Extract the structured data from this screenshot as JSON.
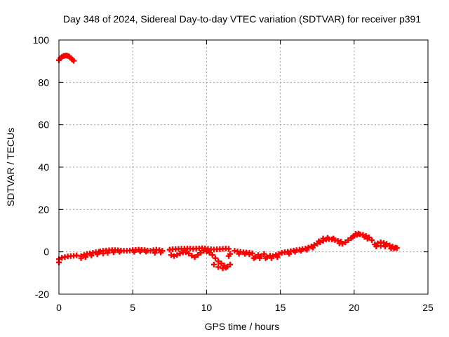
{
  "chart_data": {
    "type": "scatter",
    "title": "Day 348 of 2024, Sidereal Day-to-day VTEC variation (SDTVAR) for receiver p391",
    "xlabel": "GPS time / hours",
    "ylabel": "SDTVAR / TECUs",
    "xlim": [
      0,
      25
    ],
    "ylim": [
      -20,
      100
    ],
    "xticks": [
      0,
      5,
      10,
      15,
      20,
      25
    ],
    "yticks": [
      -20,
      0,
      20,
      40,
      60,
      80,
      100
    ],
    "grid": true,
    "marker": "plus",
    "series": [
      {
        "name": "SDTVAR",
        "color": "#ff0000",
        "points": [
          [
            0.0,
            90.5
          ],
          [
            0.1,
            91.5
          ],
          [
            0.2,
            92.0
          ],
          [
            0.3,
            92.4
          ],
          [
            0.4,
            92.6
          ],
          [
            0.5,
            92.7
          ],
          [
            0.6,
            92.5
          ],
          [
            0.7,
            92.2
          ],
          [
            0.8,
            91.5
          ],
          [
            0.9,
            90.8
          ],
          [
            1.0,
            90.2
          ],
          [
            0.0,
            -3.5
          ],
          [
            0.0,
            -5.0
          ],
          [
            0.2,
            -2.8
          ],
          [
            0.4,
            -2.5
          ],
          [
            0.6,
            -2.2
          ],
          [
            0.8,
            -2.0
          ],
          [
            1.0,
            -1.9
          ],
          [
            1.2,
            -1.7
          ],
          [
            1.5,
            -2.0
          ],
          [
            1.7,
            -1.5
          ],
          [
            1.9,
            -1.0
          ],
          [
            2.1,
            -0.8
          ],
          [
            2.3,
            -0.5
          ],
          [
            2.5,
            -0.2
          ],
          [
            2.7,
            0.0
          ],
          [
            1.5,
            -3.0
          ],
          [
            1.8,
            -2.5
          ],
          [
            2.2,
            -1.8
          ],
          [
            2.6,
            -1.2
          ],
          [
            2.8,
            0.2
          ],
          [
            3.0,
            0.5
          ],
          [
            3.2,
            0.6
          ],
          [
            3.4,
            0.7
          ],
          [
            3.6,
            0.8
          ],
          [
            3.8,
            0.8
          ],
          [
            4.0,
            0.7
          ],
          [
            4.2,
            0.6
          ],
          [
            4.4,
            0.5
          ],
          [
            3.0,
            -0.8
          ],
          [
            3.3,
            -0.5
          ],
          [
            3.7,
            -0.2
          ],
          [
            4.1,
            0.0
          ],
          [
            4.6,
            0.5
          ],
          [
            4.8,
            0.6
          ],
          [
            5.0,
            0.8
          ],
          [
            5.2,
            0.9
          ],
          [
            5.4,
            1.0
          ],
          [
            5.6,
            0.9
          ],
          [
            5.8,
            0.8
          ],
          [
            6.0,
            0.6
          ],
          [
            6.2,
            0.5
          ],
          [
            5.1,
            0.0
          ],
          [
            5.5,
            0.2
          ],
          [
            5.9,
            0.1
          ],
          [
            6.4,
            0.8
          ],
          [
            6.6,
            1.0
          ],
          [
            6.8,
            0.8
          ],
          [
            7.0,
            0.5
          ],
          [
            6.5,
            -0.5
          ],
          [
            6.9,
            -0.3
          ],
          [
            7.5,
            1.0
          ],
          [
            7.7,
            1.2
          ],
          [
            7.9,
            1.3
          ],
          [
            8.1,
            1.4
          ],
          [
            8.3,
            1.5
          ],
          [
            8.5,
            1.5
          ],
          [
            8.7,
            1.6
          ],
          [
            8.9,
            1.5
          ],
          [
            9.1,
            1.4
          ],
          [
            9.3,
            1.5
          ],
          [
            9.5,
            1.6
          ],
          [
            9.7,
            1.7
          ],
          [
            9.9,
            1.6
          ],
          [
            10.1,
            1.4
          ],
          [
            10.3,
            1.2
          ],
          [
            10.5,
            1.1
          ],
          [
            10.7,
            1.2
          ],
          [
            10.9,
            1.3
          ],
          [
            11.1,
            1.4
          ],
          [
            11.3,
            1.5
          ],
          [
            11.5,
            1.4
          ],
          [
            7.6,
            -1.5
          ],
          [
            7.8,
            -2.0
          ],
          [
            8.0,
            -1.5
          ],
          [
            8.2,
            -0.8
          ],
          [
            8.4,
            -0.3
          ],
          [
            8.6,
            -0.2
          ],
          [
            8.8,
            -0.8
          ],
          [
            9.0,
            -1.8
          ],
          [
            9.2,
            -2.5
          ],
          [
            9.4,
            -1.5
          ],
          [
            9.6,
            -0.5
          ],
          [
            9.8,
            0.5
          ],
          [
            10.0,
            0.2
          ],
          [
            10.2,
            -0.5
          ],
          [
            10.4,
            -1.5
          ],
          [
            10.6,
            -3.0
          ],
          [
            10.8,
            -4.5
          ],
          [
            11.0,
            -5.5
          ],
          [
            11.2,
            -6.5
          ],
          [
            11.4,
            -7.0
          ],
          [
            11.6,
            -6.0
          ],
          [
            10.5,
            -6.0
          ],
          [
            10.8,
            -7.2
          ],
          [
            11.1,
            -7.8
          ],
          [
            11.3,
            -7.5
          ],
          [
            11.5,
            -2.0
          ],
          [
            11.6,
            -1.0
          ],
          [
            11.9,
            0.5
          ],
          [
            12.1,
            0.2
          ],
          [
            12.3,
            0.0
          ],
          [
            12.5,
            -0.2
          ],
          [
            12.7,
            -0.3
          ],
          [
            12.9,
            -0.5
          ],
          [
            13.1,
            -0.7
          ],
          [
            12.2,
            -1.0
          ],
          [
            12.6,
            -1.0
          ],
          [
            12.9,
            -1.2
          ],
          [
            13.3,
            -2.5
          ],
          [
            13.5,
            -1.5
          ],
          [
            13.7,
            -2.0
          ],
          [
            13.9,
            -1.0
          ],
          [
            14.1,
            -2.5
          ],
          [
            14.3,
            -1.8
          ],
          [
            14.5,
            -2.0
          ],
          [
            14.7,
            -1.5
          ],
          [
            14.9,
            -1.0
          ],
          [
            13.2,
            -3.0
          ],
          [
            13.6,
            -3.0
          ],
          [
            14.0,
            -3.0
          ],
          [
            14.4,
            -3.0
          ],
          [
            14.8,
            -2.5
          ],
          [
            15.1,
            -0.5
          ],
          [
            15.3,
            -0.2
          ],
          [
            15.5,
            0.0
          ],
          [
            15.7,
            0.3
          ],
          [
            15.9,
            0.6
          ],
          [
            16.1,
            0.8
          ],
          [
            16.3,
            1.0
          ],
          [
            16.5,
            1.2
          ],
          [
            16.7,
            1.5
          ],
          [
            16.9,
            2.0
          ],
          [
            17.1,
            2.5
          ],
          [
            17.3,
            3.2
          ],
          [
            15.6,
            -1.0
          ],
          [
            16.0,
            0.0
          ],
          [
            16.4,
            0.5
          ],
          [
            16.8,
            1.0
          ],
          [
            17.2,
            2.0
          ],
          [
            17.5,
            3.8
          ],
          [
            17.7,
            4.5
          ],
          [
            17.9,
            5.2
          ],
          [
            18.1,
            5.8
          ],
          [
            18.3,
            6.0
          ],
          [
            18.5,
            5.9
          ],
          [
            18.7,
            5.5
          ],
          [
            18.9,
            5.2
          ],
          [
            19.1,
            4.8
          ],
          [
            17.6,
            5.0
          ],
          [
            17.9,
            6.3
          ],
          [
            18.2,
            6.6
          ],
          [
            18.6,
            6.3
          ],
          [
            19.0,
            4.0
          ],
          [
            19.2,
            3.8
          ],
          [
            19.4,
            4.5
          ],
          [
            19.6,
            5.5
          ],
          [
            19.8,
            6.5
          ],
          [
            20.0,
            7.5
          ],
          [
            20.2,
            8.0
          ],
          [
            20.4,
            8.2
          ],
          [
            20.6,
            8.0
          ],
          [
            20.8,
            7.5
          ],
          [
            21.0,
            6.8
          ],
          [
            21.2,
            5.5
          ],
          [
            19.9,
            7.0
          ],
          [
            20.1,
            8.5
          ],
          [
            20.3,
            8.6
          ],
          [
            20.7,
            7.0
          ],
          [
            20.9,
            6.2
          ],
          [
            21.4,
            3.5
          ],
          [
            21.6,
            4.0
          ],
          [
            21.8,
            4.5
          ],
          [
            22.0,
            4.2
          ],
          [
            22.2,
            3.8
          ],
          [
            22.4,
            3.0
          ],
          [
            22.6,
            2.5
          ],
          [
            22.8,
            2.0
          ],
          [
            22.9,
            1.8
          ],
          [
            21.5,
            2.5
          ],
          [
            21.8,
            2.8
          ],
          [
            22.1,
            2.5
          ],
          [
            22.5,
            1.5
          ],
          [
            22.7,
            1.5
          ]
        ]
      }
    ]
  }
}
